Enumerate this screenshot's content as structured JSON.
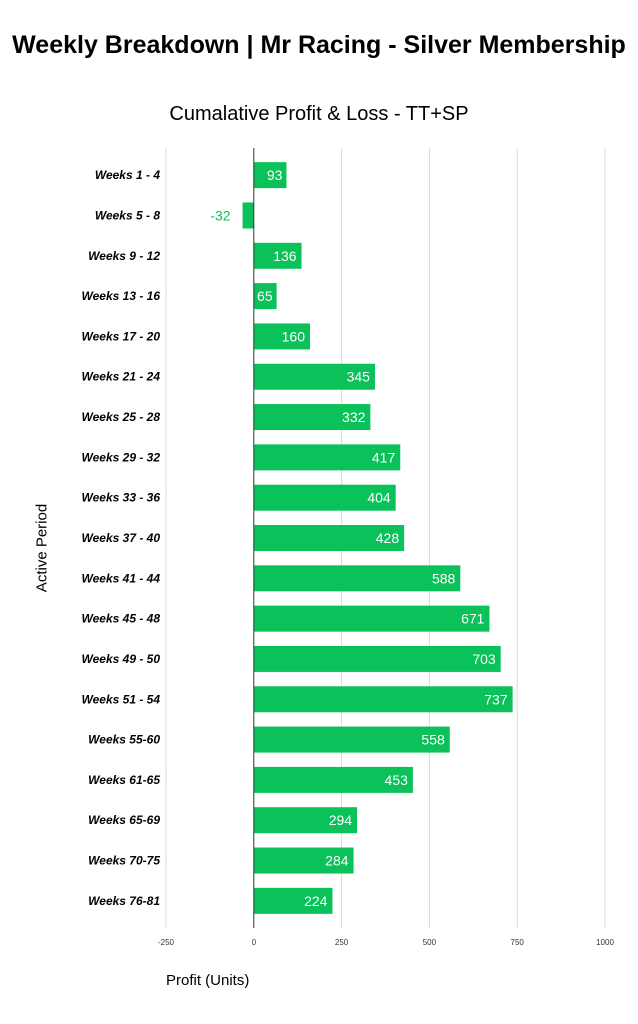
{
  "chart_data": {
    "type": "bar",
    "orientation": "horizontal",
    "title": "Weekly Breakdown | Mr Racing - Silver Membership",
    "subtitle": "Cumalative Profit & Loss - TT+SP",
    "xlabel": "Profit (Units)",
    "ylabel": "Active Period",
    "xlim": [
      -250,
      1000
    ],
    "xticks": [
      -250,
      0,
      250,
      500,
      750,
      1000
    ],
    "grid": true,
    "legend": "none",
    "bar_color": "#0ac15a",
    "label_color_outside": "#0ac15a",
    "categories": [
      "Weeks 1 - 4",
      "Weeks 5 - 8",
      "Weeks 9 - 12",
      "Weeks 13 - 16",
      "Weeks 17 - 20",
      "Weeks 21 - 24",
      "Weeks 25 - 28",
      "Weeks 29 - 32",
      "Weeks 33 - 36",
      "Weeks 37 - 40",
      "Weeks 41 - 44",
      "Weeks 45 - 48",
      "Weeks 49 - 50",
      "Weeks 51 - 54",
      "Weeks 55-60",
      "Weeks 61-65",
      "Weeks 65-69",
      "Weeks 70-75",
      "Weeks 76-81"
    ],
    "values": [
      93,
      -32,
      136,
      65,
      160,
      345,
      332,
      417,
      404,
      428,
      588,
      671,
      703,
      737,
      558,
      453,
      294,
      284,
      224
    ]
  }
}
